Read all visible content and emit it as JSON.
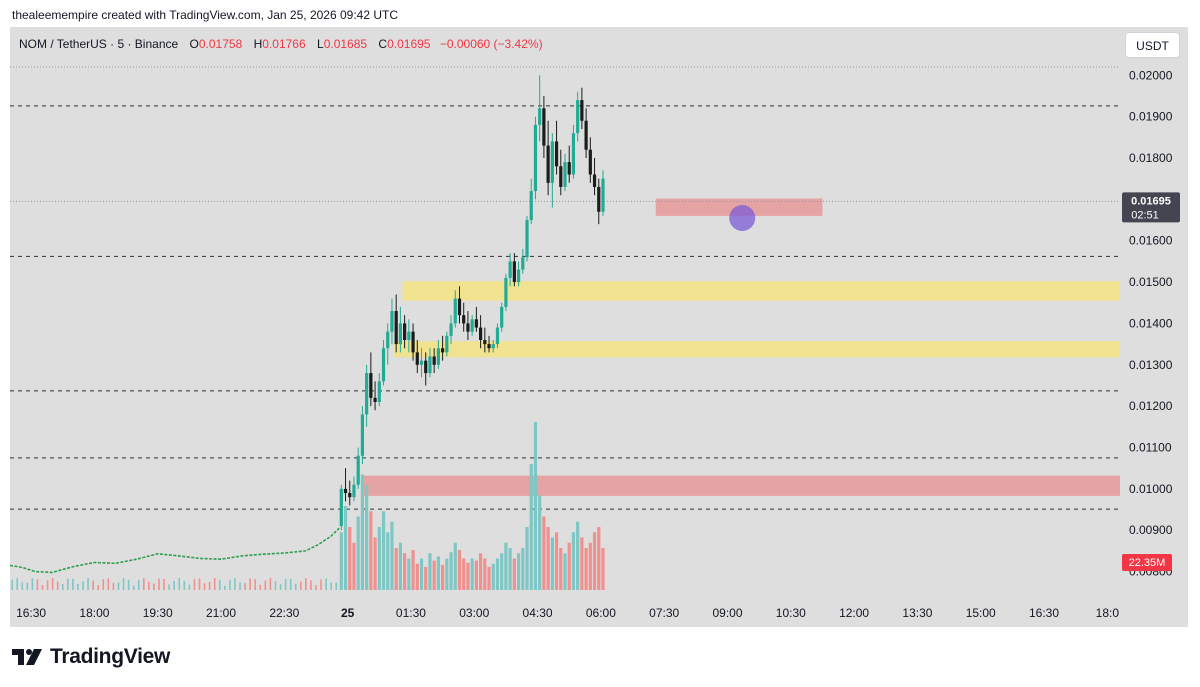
{
  "attribution": "thealeemempire created with TradingView.com, Jan 25, 2026 09:42 UTC",
  "legend": {
    "symbol": "NOM / TetherUS · 5 · Binance",
    "open_label": "O",
    "open": "0.01758",
    "high_label": "H",
    "high": "0.01766",
    "low_label": "L",
    "low": "0.01685",
    "close_label": "C",
    "close": "0.01695",
    "change": "−0.00060 (−3.42%)"
  },
  "currency_button": "USDT",
  "brand": "TradingView",
  "colors": {
    "up": "#22ab94",
    "down": "#1c1c1c",
    "volume_up": "#7fc7c4",
    "volume_down": "#f0908f",
    "pre_rally_line": "#2e9e4f",
    "zone_yellow": "#f4e27a",
    "zone_red": "#e88a8a",
    "marker": "#7b5cd6",
    "axis_tag_dark": "#434651",
    "axis_tag_red": "#f23645"
  },
  "chart_data": {
    "type": "candlestick",
    "pair": "NOM / TetherUS",
    "timeframe": "5",
    "exchange": "Binance",
    "ylim": [
      0.0077,
      0.0202
    ],
    "y_ticks": [
      "0.02000",
      "0.01900",
      "0.01800",
      "0.01600",
      "0.01500",
      "0.01400",
      "0.01300",
      "0.01200",
      "0.01100",
      "0.01000",
      "0.00900",
      "0.00800"
    ],
    "y_tick_values": [
      0.02,
      0.019,
      0.018,
      0.016,
      0.015,
      0.014,
      0.013,
      0.012,
      0.011,
      0.01,
      0.009,
      0.008
    ],
    "x_ticks": [
      {
        "label": "16:30",
        "h": 16.5
      },
      {
        "label": "18:00",
        "h": 18
      },
      {
        "label": "19:30",
        "h": 19.5
      },
      {
        "label": "21:00",
        "h": 21
      },
      {
        "label": "22:30",
        "h": 22.5
      },
      {
        "label": "25",
        "h": 24,
        "bold": true
      },
      {
        "label": "01:30",
        "h": 25.5
      },
      {
        "label": "03:00",
        "h": 27
      },
      {
        "label": "04:30",
        "h": 28.5
      },
      {
        "label": "06:00",
        "h": 30
      },
      {
        "label": "07:30",
        "h": 31.5
      },
      {
        "label": "09:00",
        "h": 33
      },
      {
        "label": "10:30",
        "h": 34.5
      },
      {
        "label": "12:00",
        "h": 36
      },
      {
        "label": "13:30",
        "h": 37.5
      },
      {
        "label": "15:00",
        "h": 39
      },
      {
        "label": "16:30",
        "h": 40.5
      },
      {
        "label": "18:0",
        "h": 42
      }
    ],
    "x_domain_hours": [
      16.0,
      42.3
    ],
    "last_price": {
      "value": 0.01695,
      "label": "0.01695",
      "countdown": "02:51"
    },
    "volume_tag": {
      "label": "22.35M"
    },
    "horizontal_lines": [
      {
        "price": 0.0202,
        "style": "dotted"
      },
      {
        "price": 0.01926,
        "style": "dashed"
      },
      {
        "price": 0.01695,
        "style": "dotted"
      },
      {
        "price": 0.01562,
        "style": "dashed"
      },
      {
        "price": 0.01237,
        "style": "dashed"
      },
      {
        "price": 0.01075,
        "style": "dashed"
      },
      {
        "price": 0.00951,
        "style": "dashed"
      }
    ],
    "zones": [
      {
        "name": "resistance-zone-top",
        "color": "red",
        "price_low": 0.0166,
        "price_high": 0.01702,
        "h_start": 31.3,
        "h_end": 35.25
      },
      {
        "name": "support-zone-upper",
        "color": "yellow",
        "price_low": 0.01455,
        "price_high": 0.01502,
        "h_start": 25.3,
        "h_end": 42.3
      },
      {
        "name": "support-zone-lower",
        "color": "yellow",
        "price_low": 0.01318,
        "price_high": 0.01357,
        "h_start": 25.1,
        "h_end": 42.3
      },
      {
        "name": "support-zone-bottom",
        "color": "red",
        "price_low": 0.00983,
        "price_high": 0.01032,
        "h_start": 24.35,
        "h_end": 42.3
      }
    ],
    "marker": {
      "h": 33.35,
      "price": 0.01655
    },
    "pre_rally_line": [
      [
        16.0,
        0.00815
      ],
      [
        16.3,
        0.0081
      ],
      [
        16.6,
        0.008
      ],
      [
        17.0,
        0.00798
      ],
      [
        17.5,
        0.00812
      ],
      [
        18.0,
        0.00822
      ],
      [
        18.5,
        0.0082
      ],
      [
        19.0,
        0.0083
      ],
      [
        19.5,
        0.00843
      ],
      [
        20.0,
        0.00838
      ],
      [
        20.5,
        0.00832
      ],
      [
        21.0,
        0.0083
      ],
      [
        21.5,
        0.00838
      ],
      [
        22.0,
        0.00842
      ],
      [
        22.5,
        0.00845
      ],
      [
        23.0,
        0.0085
      ],
      [
        23.3,
        0.00865
      ],
      [
        23.6,
        0.00885
      ],
      [
        23.8,
        0.00905
      ]
    ],
    "candles": [
      [
        23.85,
        0.0091,
        0.0101,
        0.009,
        0.01
      ],
      [
        23.95,
        0.01,
        0.0105,
        0.0097,
        0.0099
      ],
      [
        24.05,
        0.0099,
        0.0102,
        0.0096,
        0.0098
      ],
      [
        24.15,
        0.0098,
        0.0103,
        0.0097,
        0.0101
      ],
      [
        24.25,
        0.0101,
        0.011,
        0.01,
        0.0108
      ],
      [
        24.35,
        0.0108,
        0.012,
        0.0106,
        0.0118
      ],
      [
        24.45,
        0.0118,
        0.013,
        0.0115,
        0.0128
      ],
      [
        24.55,
        0.0128,
        0.0133,
        0.012,
        0.0122
      ],
      [
        24.65,
        0.0122,
        0.0126,
        0.0119,
        0.0121
      ],
      [
        24.75,
        0.0121,
        0.0128,
        0.012,
        0.0126
      ],
      [
        24.85,
        0.0126,
        0.0136,
        0.0125,
        0.0134
      ],
      [
        24.95,
        0.0134,
        0.014,
        0.013,
        0.0138
      ],
      [
        25.05,
        0.0138,
        0.0146,
        0.0135,
        0.0143
      ],
      [
        25.15,
        0.0143,
        0.0147,
        0.0133,
        0.0135
      ],
      [
        25.25,
        0.0135,
        0.0144,
        0.0133,
        0.014
      ],
      [
        25.35,
        0.014,
        0.0142,
        0.0134,
        0.0136
      ],
      [
        25.45,
        0.0136,
        0.0141,
        0.0133,
        0.0138
      ],
      [
        25.55,
        0.0138,
        0.014,
        0.0131,
        0.0133
      ],
      [
        25.65,
        0.0133,
        0.0136,
        0.0128,
        0.013
      ],
      [
        25.75,
        0.013,
        0.0134,
        0.0127,
        0.0131
      ],
      [
        25.85,
        0.0131,
        0.0133,
        0.0125,
        0.0128
      ],
      [
        25.95,
        0.0128,
        0.0134,
        0.0127,
        0.0132
      ],
      [
        26.05,
        0.0132,
        0.0134,
        0.0128,
        0.013
      ],
      [
        26.15,
        0.013,
        0.0136,
        0.0129,
        0.0134
      ],
      [
        26.25,
        0.0134,
        0.0137,
        0.0131,
        0.0133
      ],
      [
        26.35,
        0.0133,
        0.0138,
        0.0132,
        0.0137
      ],
      [
        26.45,
        0.0137,
        0.0142,
        0.0135,
        0.014
      ],
      [
        26.55,
        0.014,
        0.0148,
        0.0139,
        0.0146
      ],
      [
        26.65,
        0.0146,
        0.0149,
        0.014,
        0.0142
      ],
      [
        26.75,
        0.0142,
        0.0145,
        0.0138,
        0.014
      ],
      [
        26.85,
        0.014,
        0.0143,
        0.0136,
        0.0138
      ],
      [
        26.95,
        0.0138,
        0.0142,
        0.0137,
        0.0141
      ],
      [
        27.05,
        0.0141,
        0.0144,
        0.0138,
        0.0139
      ],
      [
        27.15,
        0.0139,
        0.0142,
        0.0134,
        0.0136
      ],
      [
        27.25,
        0.0136,
        0.0139,
        0.0133,
        0.0135
      ],
      [
        27.35,
        0.0135,
        0.0137,
        0.0133,
        0.0134
      ],
      [
        27.45,
        0.0134,
        0.0136,
        0.0133,
        0.0135
      ],
      [
        27.55,
        0.0135,
        0.014,
        0.0134,
        0.0139
      ],
      [
        27.65,
        0.0139,
        0.0145,
        0.0138,
        0.0144
      ],
      [
        27.75,
        0.0144,
        0.0152,
        0.0143,
        0.0151
      ],
      [
        27.85,
        0.0151,
        0.0157,
        0.0149,
        0.0155
      ],
      [
        27.95,
        0.0155,
        0.0157,
        0.0149,
        0.015
      ],
      [
        28.05,
        0.015,
        0.0155,
        0.0149,
        0.0153
      ],
      [
        28.15,
        0.0153,
        0.0158,
        0.0152,
        0.0156
      ],
      [
        28.25,
        0.0156,
        0.0166,
        0.0155,
        0.0165
      ],
      [
        28.35,
        0.0165,
        0.0175,
        0.0164,
        0.0172
      ],
      [
        28.45,
        0.0172,
        0.019,
        0.017,
        0.0188
      ],
      [
        28.55,
        0.0188,
        0.02,
        0.0184,
        0.0192
      ],
      [
        28.65,
        0.0192,
        0.0195,
        0.018,
        0.0183
      ],
      [
        28.75,
        0.0183,
        0.0189,
        0.0171,
        0.0174
      ],
      [
        28.85,
        0.0174,
        0.0186,
        0.0168,
        0.0184
      ],
      [
        28.95,
        0.0184,
        0.0189,
        0.0176,
        0.0178
      ],
      [
        29.05,
        0.0178,
        0.0182,
        0.0171,
        0.0173
      ],
      [
        29.15,
        0.0173,
        0.0181,
        0.0172,
        0.0179
      ],
      [
        29.25,
        0.0179,
        0.0183,
        0.0174,
        0.0176
      ],
      [
        29.35,
        0.0176,
        0.0188,
        0.0175,
        0.0186
      ],
      [
        29.45,
        0.0186,
        0.0196,
        0.0184,
        0.0194
      ],
      [
        29.55,
        0.0194,
        0.0197,
        0.0187,
        0.0189
      ],
      [
        29.65,
        0.0189,
        0.0192,
        0.018,
        0.0182
      ],
      [
        29.75,
        0.0182,
        0.0185,
        0.0174,
        0.0176
      ],
      [
        29.85,
        0.0176,
        0.018,
        0.0171,
        0.0173
      ],
      [
        29.95,
        0.0173,
        0.0175,
        0.0164,
        0.0167
      ],
      [
        30.05,
        0.0167,
        0.0177,
        0.0166,
        0.0175
      ]
    ],
    "volumes": [
      [
        23.85,
        0.55,
        "up"
      ],
      [
        23.95,
        0.8,
        "up"
      ],
      [
        24.05,
        0.6,
        "down"
      ],
      [
        24.15,
        0.45,
        "down"
      ],
      [
        24.25,
        0.7,
        "up"
      ],
      [
        24.35,
        1.1,
        "up"
      ],
      [
        24.45,
        1.0,
        "up"
      ],
      [
        24.55,
        0.75,
        "down"
      ],
      [
        24.65,
        0.5,
        "down"
      ],
      [
        24.75,
        0.6,
        "up"
      ],
      [
        24.85,
        0.75,
        "up"
      ],
      [
        24.95,
        0.55,
        "up"
      ],
      [
        25.05,
        0.65,
        "up"
      ],
      [
        25.15,
        0.4,
        "down"
      ],
      [
        25.25,
        0.45,
        "up"
      ],
      [
        25.35,
        0.35,
        "down"
      ],
      [
        25.45,
        0.3,
        "up"
      ],
      [
        25.55,
        0.38,
        "down"
      ],
      [
        25.65,
        0.25,
        "down"
      ],
      [
        25.75,
        0.3,
        "up"
      ],
      [
        25.85,
        0.22,
        "down"
      ],
      [
        25.95,
        0.35,
        "up"
      ],
      [
        26.05,
        0.28,
        "down"
      ],
      [
        26.15,
        0.32,
        "up"
      ],
      [
        26.25,
        0.24,
        "down"
      ],
      [
        26.35,
        0.3,
        "up"
      ],
      [
        26.45,
        0.36,
        "up"
      ],
      [
        26.55,
        0.45,
        "up"
      ],
      [
        26.65,
        0.38,
        "down"
      ],
      [
        26.75,
        0.3,
        "down"
      ],
      [
        26.85,
        0.26,
        "down"
      ],
      [
        26.95,
        0.3,
        "up"
      ],
      [
        27.05,
        0.28,
        "down"
      ],
      [
        27.15,
        0.35,
        "down"
      ],
      [
        27.25,
        0.3,
        "down"
      ],
      [
        27.35,
        0.22,
        "down"
      ],
      [
        27.45,
        0.25,
        "up"
      ],
      [
        27.55,
        0.3,
        "up"
      ],
      [
        27.65,
        0.35,
        "up"
      ],
      [
        27.75,
        0.45,
        "up"
      ],
      [
        27.85,
        0.4,
        "up"
      ],
      [
        27.95,
        0.3,
        "down"
      ],
      [
        28.05,
        0.35,
        "up"
      ],
      [
        28.15,
        0.4,
        "up"
      ],
      [
        28.25,
        0.6,
        "up"
      ],
      [
        28.35,
        1.2,
        "up"
      ],
      [
        28.45,
        1.6,
        "up"
      ],
      [
        28.55,
        0.9,
        "up"
      ],
      [
        28.65,
        0.7,
        "down"
      ],
      [
        28.75,
        0.6,
        "down"
      ],
      [
        28.85,
        0.5,
        "up"
      ],
      [
        28.95,
        0.55,
        "down"
      ],
      [
        29.05,
        0.4,
        "down"
      ],
      [
        29.15,
        0.35,
        "up"
      ],
      [
        29.25,
        0.45,
        "down"
      ],
      [
        29.35,
        0.55,
        "up"
      ],
      [
        29.45,
        0.65,
        "up"
      ],
      [
        29.55,
        0.5,
        "down"
      ],
      [
        29.65,
        0.4,
        "down"
      ],
      [
        29.75,
        0.45,
        "down"
      ],
      [
        29.85,
        0.55,
        "down"
      ],
      [
        29.95,
        0.6,
        "down"
      ],
      [
        30.05,
        0.4,
        "down"
      ]
    ]
  }
}
